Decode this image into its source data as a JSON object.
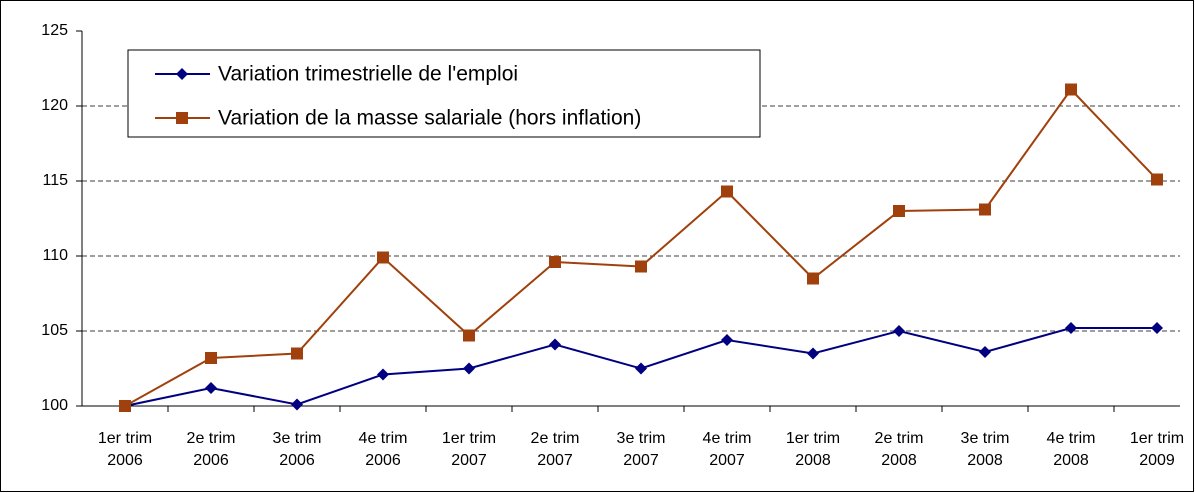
{
  "chart_data": {
    "type": "line",
    "categories": [
      [
        "1er trim",
        "2006"
      ],
      [
        "2e trim",
        "2006"
      ],
      [
        "3e trim",
        "2006"
      ],
      [
        "4e trim",
        "2006"
      ],
      [
        "1er trim",
        "2007"
      ],
      [
        "2e trim",
        "2007"
      ],
      [
        "3e trim",
        "2007"
      ],
      [
        "4e trim",
        "2007"
      ],
      [
        "1er trim",
        "2008"
      ],
      [
        "2e trim",
        "2008"
      ],
      [
        "3e trim",
        "2008"
      ],
      [
        "4e trim",
        "2008"
      ],
      [
        "1er trim",
        "2009"
      ]
    ],
    "series": [
      {
        "name": "Variation trimestrielle de l'emploi",
        "color": "#000080",
        "marker": "diamond",
        "values": [
          100,
          101.2,
          100.1,
          102.1,
          102.5,
          104.1,
          102.5,
          104.4,
          103.5,
          105.0,
          103.6,
          105.2,
          105.2
        ]
      },
      {
        "name": "Variation de la masse salariale (hors inflation)",
        "color": "#a0410d",
        "marker": "square",
        "values": [
          100,
          103.2,
          103.5,
          109.9,
          104.7,
          109.6,
          109.3,
          114.3,
          108.5,
          113.0,
          113.1,
          121.1,
          115.1
        ]
      }
    ],
    "ylim": [
      100,
      125
    ],
    "yticks": [
      100,
      105,
      110,
      115,
      120,
      125
    ],
    "grid": true
  }
}
